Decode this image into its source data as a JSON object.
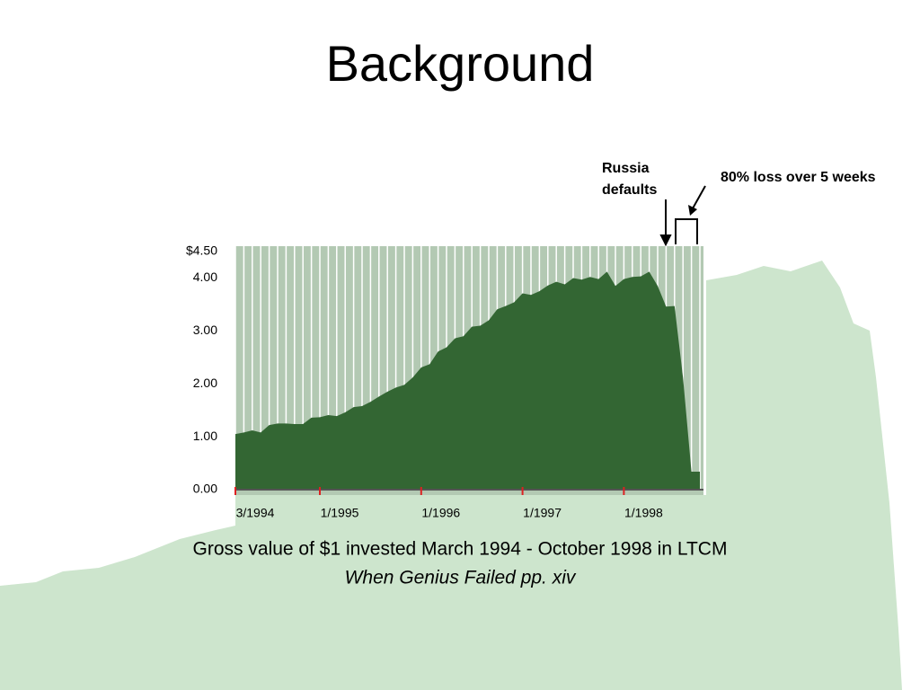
{
  "chart_data": {
    "type": "area",
    "title": "Background",
    "caption": "Gross value of $1 invested March 1994 - October 1998 in LTCM",
    "source": "When Genius Failed pp. xiv",
    "annotations": [
      {
        "lines": [
          "Russia",
          "defaults"
        ]
      },
      {
        "lines": [
          "80% loss over 5 weeks"
        ]
      }
    ],
    "categories": [
      "3/1994",
      null,
      null,
      null,
      null,
      null,
      null,
      null,
      null,
      null,
      "1/1995",
      null,
      null,
      null,
      null,
      null,
      null,
      null,
      null,
      null,
      null,
      null,
      "1/1996",
      null,
      null,
      null,
      null,
      null,
      null,
      null,
      null,
      null,
      null,
      null,
      "1/1997",
      null,
      null,
      null,
      null,
      null,
      null,
      null,
      null,
      null,
      null,
      null,
      "1/1998",
      null,
      null,
      null,
      null,
      null,
      null,
      null,
      null,
      null
    ],
    "values": [
      1.05,
      1.08,
      1.12,
      1.08,
      1.22,
      1.25,
      1.25,
      1.24,
      1.24,
      1.36,
      1.37,
      1.41,
      1.39,
      1.46,
      1.56,
      1.58,
      1.66,
      1.76,
      1.85,
      1.93,
      1.98,
      2.12,
      2.31,
      2.37,
      2.61,
      2.69,
      2.86,
      2.9,
      3.08,
      3.1,
      3.2,
      3.41,
      3.47,
      3.54,
      3.71,
      3.68,
      3.75,
      3.86,
      3.93,
      3.88,
      4.0,
      3.97,
      4.02,
      3.98,
      4.12,
      3.85,
      3.98,
      4.02,
      4.03,
      4.12,
      3.85,
      3.46,
      3.47,
      2.12,
      0.34,
      0.34
    ],
    "color": "#336633",
    "plot_background": "#b3c9b3",
    "ylim": [
      0,
      4.5
    ],
    "yticks": [
      {
        "value": 0,
        "label": "0.00"
      },
      {
        "value": 1,
        "label": "1.00"
      },
      {
        "value": 2,
        "label": "2.00"
      },
      {
        "value": 3,
        "label": "3.00"
      },
      {
        "value": 4,
        "label": "4.00"
      },
      {
        "value": 4.5,
        "label": "$4.50"
      }
    ]
  }
}
